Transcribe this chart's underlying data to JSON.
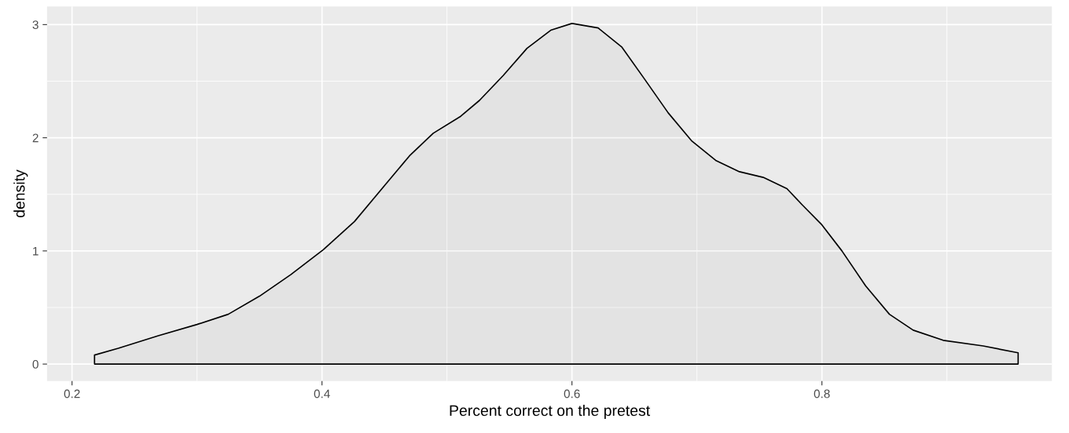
{
  "chart_data": {
    "type": "area",
    "xlabel": "Percent correct on the pretest",
    "ylabel": "density",
    "x": [
      0.218,
      0.237,
      0.269,
      0.3,
      0.325,
      0.35,
      0.375,
      0.401,
      0.426,
      0.451,
      0.47,
      0.489,
      0.511,
      0.526,
      0.545,
      0.564,
      0.583,
      0.6,
      0.621,
      0.64,
      0.658,
      0.677,
      0.696,
      0.715,
      0.734,
      0.753,
      0.772,
      0.784,
      0.8,
      0.816,
      0.835,
      0.854,
      0.873,
      0.897,
      0.929,
      0.957
    ],
    "series": [
      {
        "color": "#000000",
        "values": [
          0.08,
          0.14,
          0.25,
          0.35,
          0.44,
          0.6,
          0.79,
          1.01,
          1.26,
          1.59,
          1.84,
          2.04,
          2.19,
          2.33,
          2.55,
          2.79,
          2.95,
          3.01,
          2.97,
          2.8,
          2.52,
          2.22,
          1.97,
          1.8,
          1.7,
          1.65,
          1.55,
          1.41,
          1.23,
          1.0,
          0.69,
          0.44,
          0.3,
          0.21,
          0.16,
          0.1
        ]
      }
    ],
    "xlim": [
      0.18,
      0.984
    ],
    "ylim": [
      -0.15,
      3.16
    ],
    "xticks": [
      0.2,
      0.4,
      0.6,
      0.8
    ],
    "yticks": [
      0,
      1,
      2,
      3
    ],
    "grid": true
  }
}
